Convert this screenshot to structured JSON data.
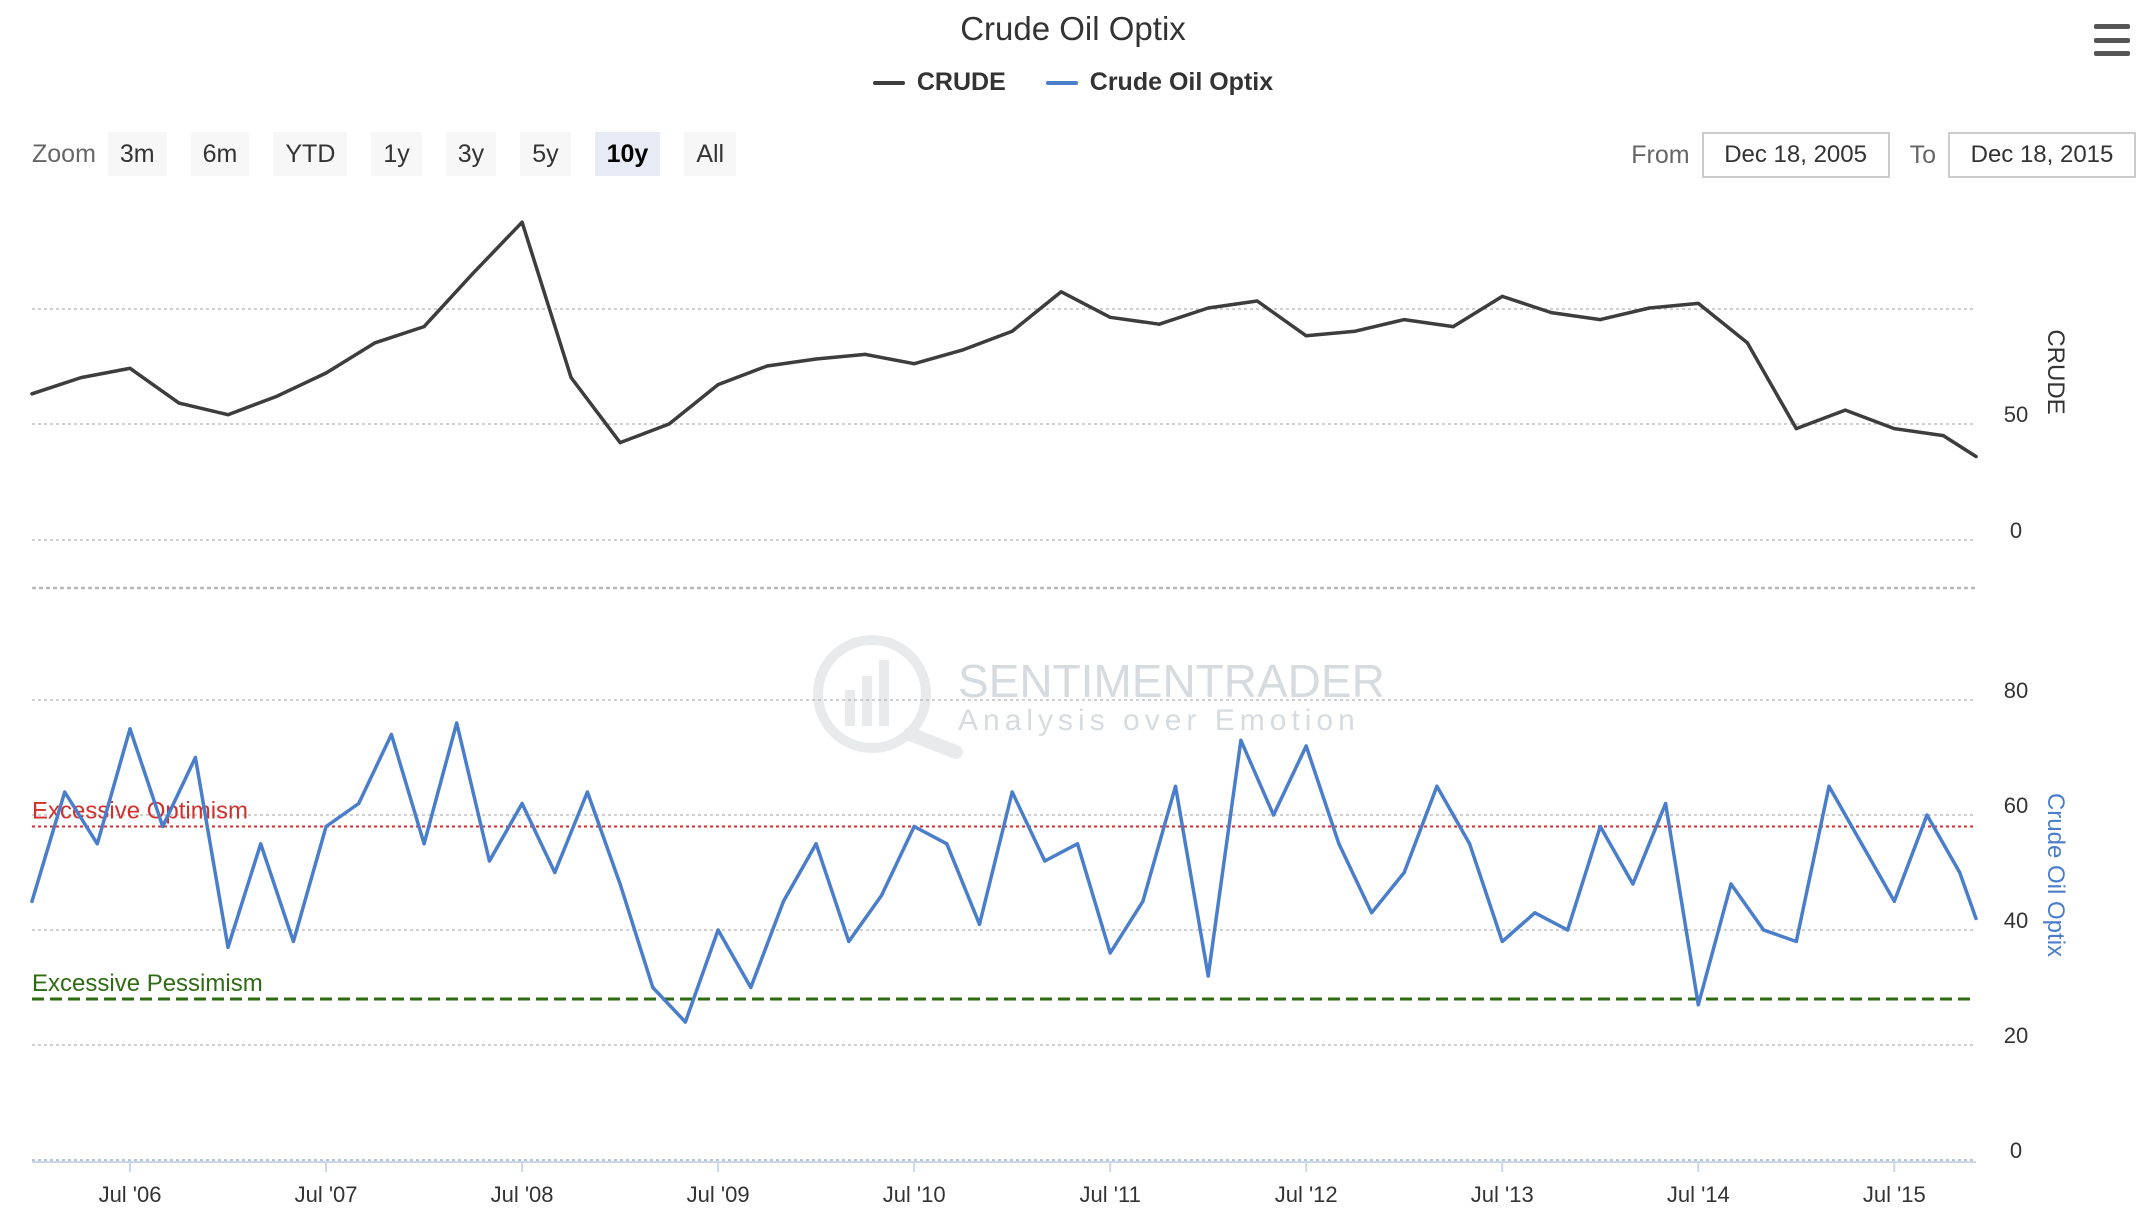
{
  "title": "Crude Oil Optix",
  "legend": [
    {
      "name": "CRUDE",
      "color": "#3d3d3d"
    },
    {
      "name": "Crude Oil Optix",
      "color": "#4a7ecb"
    }
  ],
  "menu_icon": "hamburger-menu-icon",
  "zoom": {
    "label": "Zoom",
    "buttons": [
      "3m",
      "6m",
      "YTD",
      "1y",
      "3y",
      "5y",
      "10y",
      "All"
    ],
    "active": "10y"
  },
  "range": {
    "from_label": "From",
    "from_value": "Dec 18, 2005",
    "to_label": "To",
    "to_value": "Dec 18, 2015"
  },
  "watermark": {
    "name": "SENTIMENTRADER",
    "tagline": "Analysis over Emotion"
  },
  "chart_data": [
    {
      "type": "line",
      "ylabel": "CRUDE",
      "ylim": [
        0,
        130
      ],
      "yticks": [
        0,
        50
      ],
      "grid": true,
      "x_range": [
        "2006-01",
        "2015-12"
      ],
      "series": [
        {
          "name": "CRUDE",
          "color": "#3d3d3d",
          "x": [
            "2006-01",
            "2006-04",
            "2006-07",
            "2006-10",
            "2007-01",
            "2007-04",
            "2007-07",
            "2007-10",
            "2008-01",
            "2008-04",
            "2008-07",
            "2008-10",
            "2009-01",
            "2009-04",
            "2009-07",
            "2009-10",
            "2010-01",
            "2010-04",
            "2010-07",
            "2010-10",
            "2011-01",
            "2011-04",
            "2011-07",
            "2011-10",
            "2012-01",
            "2012-04",
            "2012-07",
            "2012-10",
            "2013-01",
            "2013-04",
            "2013-07",
            "2013-10",
            "2014-01",
            "2014-04",
            "2014-07",
            "2014-10",
            "2015-01",
            "2015-04",
            "2015-07",
            "2015-10",
            "2015-12"
          ],
          "values": [
            63,
            70,
            74,
            59,
            54,
            62,
            72,
            85,
            92,
            115,
            137,
            70,
            42,
            50,
            67,
            75,
            78,
            80,
            76,
            82,
            90,
            107,
            96,
            93,
            100,
            103,
            88,
            90,
            95,
            92,
            105,
            98,
            95,
            100,
            102,
            85,
            48,
            56,
            48,
            45,
            36
          ]
        }
      ]
    },
    {
      "type": "line",
      "ylabel": "Crude Oil Optix",
      "ylim": [
        0,
        80
      ],
      "yticks": [
        0,
        20,
        40,
        60,
        80
      ],
      "grid": true,
      "x_range": [
        "2006-01",
        "2015-12"
      ],
      "xticks": [
        "Jul '06",
        "Jul '07",
        "Jul '08",
        "Jul '09",
        "Jul '10",
        "Jul '11",
        "Jul '12",
        "Jul '13",
        "Jul '14",
        "Jul '15"
      ],
      "bands": [
        {
          "label": "Excessive Optimism",
          "value": 58,
          "color": "#d0312d"
        },
        {
          "label": "Excessive Pessimism",
          "value": 28,
          "color": "#2e6b12"
        }
      ],
      "series": [
        {
          "name": "Crude Oil Optix",
          "color": "#4a7ecb",
          "x": [
            "2006-01",
            "2006-03",
            "2006-05",
            "2006-07",
            "2006-09",
            "2006-11",
            "2007-01",
            "2007-03",
            "2007-05",
            "2007-07",
            "2007-09",
            "2007-11",
            "2008-01",
            "2008-03",
            "2008-05",
            "2008-07",
            "2008-09",
            "2008-11",
            "2009-01",
            "2009-03",
            "2009-05",
            "2009-07",
            "2009-09",
            "2009-11",
            "2010-01",
            "2010-03",
            "2010-05",
            "2010-07",
            "2010-09",
            "2010-11",
            "2011-01",
            "2011-03",
            "2011-05",
            "2011-07",
            "2011-09",
            "2011-11",
            "2012-01",
            "2012-03",
            "2012-05",
            "2012-07",
            "2012-09",
            "2012-11",
            "2013-01",
            "2013-03",
            "2013-05",
            "2013-07",
            "2013-09",
            "2013-11",
            "2014-01",
            "2014-03",
            "2014-05",
            "2014-07",
            "2014-09",
            "2014-11",
            "2015-01",
            "2015-03",
            "2015-05",
            "2015-07",
            "2015-09",
            "2015-11",
            "2015-12"
          ],
          "values": [
            45,
            64,
            55,
            75,
            58,
            70,
            37,
            55,
            38,
            58,
            62,
            74,
            55,
            76,
            52,
            62,
            50,
            64,
            48,
            30,
            24,
            40,
            30,
            45,
            55,
            38,
            46,
            58,
            55,
            41,
            64,
            52,
            55,
            36,
            45,
            65,
            32,
            73,
            60,
            72,
            55,
            43,
            50,
            65,
            55,
            38,
            43,
            40,
            58,
            48,
            62,
            27,
            48,
            40,
            38,
            65,
            55,
            45,
            60,
            50,
            42
          ]
        }
      ]
    }
  ]
}
